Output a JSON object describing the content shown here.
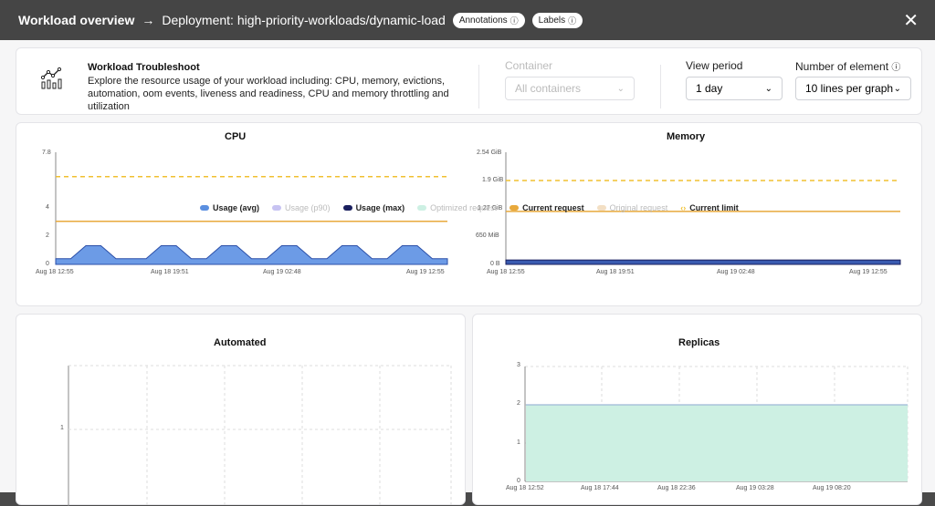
{
  "header": {
    "title": "Workload overview",
    "arrow": "→",
    "breadcrumb": "Deployment: high-priority-workloads/dynamic-load",
    "annotations_label": "Annotations",
    "labels_label": "Labels",
    "info_glyph": "ⓘ",
    "close_glyph": "✕"
  },
  "troubleshoot": {
    "title": "Workload Troubleshoot",
    "description": "Explore the resource usage of your workload including: CPU, memory, evictions, automation, oom events, liveness and readiness, CPU and memory throttling and utilization",
    "container_label": "Container",
    "container_value": "All containers",
    "period_label": "View period",
    "period_value": "1 day",
    "elements_label": "Number of element",
    "elements_value": "10 lines per graph"
  },
  "legend": [
    {
      "label": "Usage (avg)",
      "color": "#5b8fe0",
      "faded": false
    },
    {
      "label": "Usage (p90)",
      "color": "#c7c3f2",
      "faded": true
    },
    {
      "label": "Usage (max)",
      "color": "#1a1f5e",
      "faded": false
    },
    {
      "label": "Optimized request",
      "color": "#cdf0e3",
      "faded": true
    },
    {
      "label": "Current request",
      "color": "#e8a93c",
      "faded": false
    },
    {
      "label": "Original request",
      "color": "#f3dfc4",
      "faded": true
    },
    {
      "label": "Current limit",
      "color": "#f0c030",
      "faded": false
    }
  ],
  "chart_data": [
    {
      "type": "area",
      "title": "CPU",
      "y_ticks": [
        "7.8",
        "4",
        "2",
        "0"
      ],
      "ylim": [
        0,
        7.8
      ],
      "x_ticks": [
        "Aug 18 12:55",
        "Aug 18 19:51",
        "Aug 19 02:48",
        "Aug 19 12:55"
      ],
      "series": [
        {
          "name": "Usage (avg)",
          "values": [
            0.4,
            0.4,
            1.3,
            1.3,
            0.4,
            0.4,
            0.4,
            1.3,
            1.3,
            0.4,
            0.4,
            1.3,
            1.3,
            0.4,
            0.4,
            1.3,
            1.3,
            0.4,
            0.4,
            1.3,
            1.3,
            0.4,
            0.4,
            1.3,
            1.3,
            0.4,
            0.4
          ]
        },
        {
          "name": "Current request",
          "values": [
            3,
            3
          ]
        },
        {
          "name": "Current limit",
          "values": [
            6.1,
            6.1
          ]
        }
      ]
    },
    {
      "type": "area",
      "title": "Memory",
      "y_ticks": [
        "2.54 GiB",
        "1.9 GiB",
        "1.27 GiB",
        "650 MiB",
        "0 B"
      ],
      "x_ticks": [
        "Aug 18 12:55",
        "Aug 18 19:51",
        "Aug 19 02:48",
        "Aug 19 12:55"
      ],
      "series": [
        {
          "name": "Usage (avg)",
          "unit": "GiB",
          "values": [
            0.1,
            0.1
          ]
        },
        {
          "name": "Current request",
          "unit": "GiB",
          "values": [
            1.2,
            1.2
          ]
        },
        {
          "name": "Current limit",
          "unit": "GiB",
          "values": [
            1.9,
            1.9
          ]
        }
      ]
    },
    {
      "type": "line",
      "title": "Automated",
      "y_ticks": [
        "1"
      ],
      "series": []
    },
    {
      "type": "area",
      "title": "Replicas",
      "y_ticks": [
        "3",
        "2",
        "1",
        "0"
      ],
      "ylim": [
        0,
        3
      ],
      "x_ticks": [
        "Aug 18 12:52",
        "Aug 18 17:44",
        "Aug 18 22:36",
        "Aug 19 03:28",
        "Aug 19 08:20"
      ],
      "series": [
        {
          "name": "Replicas",
          "values": [
            2,
            2
          ]
        }
      ]
    }
  ]
}
